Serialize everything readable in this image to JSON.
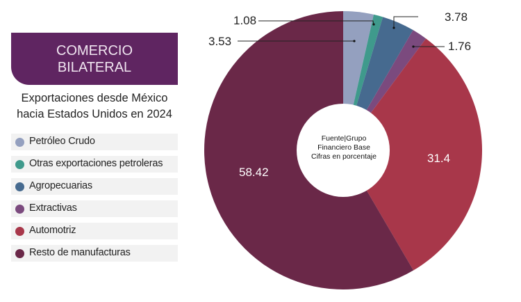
{
  "header": {
    "line1": "COMERCIO",
    "line2": "BILATERAL"
  },
  "subtitle": {
    "line1": "Exportaciones desde México",
    "line2": "hacia Estados Unidos en 2024"
  },
  "center_note": {
    "line1": "Fuente|Grupo",
    "line2": "Financiero Base",
    "line3": "Cifras en porcentaje"
  },
  "chart_data": {
    "type": "pie",
    "variant": "donut",
    "categories": [
      "Petróleo Crudo",
      "Otras exportaciones petroleras",
      "Agropecuarias",
      "Extractivas",
      "Automotriz",
      "Resto de manufacturas"
    ],
    "values": [
      3.53,
      1.08,
      3.78,
      1.76,
      31.4,
      58.42
    ],
    "labels": [
      "3.53",
      "1.08",
      "3.78",
      "1.76",
      "31.4",
      "58.42"
    ],
    "colors": [
      "#94a0bf",
      "#3f9a8c",
      "#466a8f",
      "#7b4a7e",
      "#a8374a",
      "#6a2848"
    ],
    "legend_position": "left",
    "start": "top, clockwise"
  }
}
